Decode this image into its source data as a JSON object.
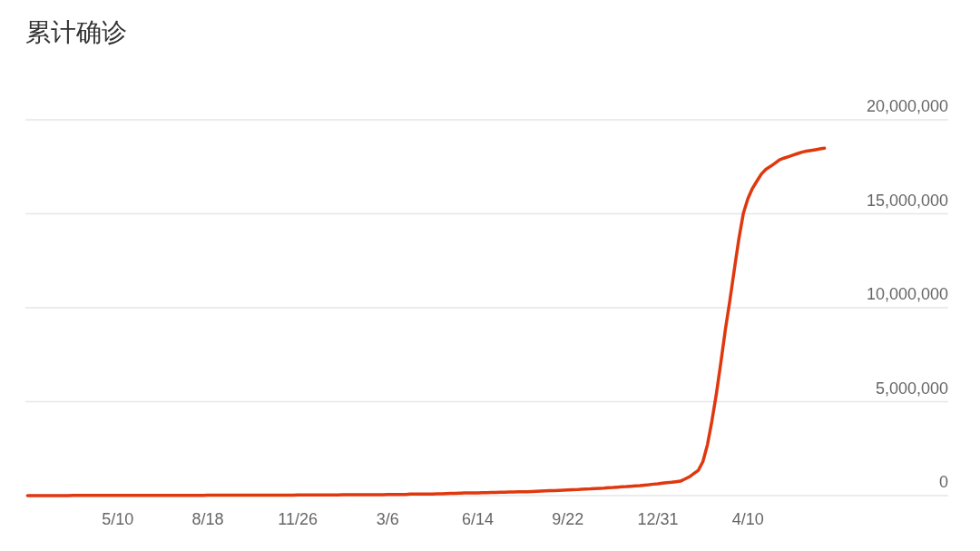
{
  "chart_data": {
    "type": "line",
    "title": "累计确诊",
    "categories": [
      null,
      null,
      null,
      null,
      null,
      null,
      null,
      null,
      null,
      null,
      null,
      null,
      null,
      null,
      null,
      null,
      null,
      null,
      null,
      null,
      "5/10",
      null,
      null,
      null,
      null,
      null,
      null,
      null,
      null,
      null,
      null,
      null,
      null,
      null,
      null,
      null,
      null,
      null,
      null,
      null,
      "8/18",
      null,
      null,
      null,
      null,
      null,
      null,
      null,
      null,
      null,
      null,
      null,
      null,
      null,
      null,
      null,
      null,
      null,
      null,
      null,
      "11/26",
      null,
      null,
      null,
      null,
      null,
      null,
      null,
      null,
      null,
      null,
      null,
      null,
      null,
      null,
      null,
      null,
      null,
      null,
      null,
      "3/6",
      null,
      null,
      null,
      null,
      null,
      null,
      null,
      null,
      null,
      null,
      null,
      null,
      null,
      null,
      null,
      null,
      null,
      null,
      null,
      "6/14",
      null,
      null,
      null,
      null,
      null,
      null,
      null,
      null,
      null,
      null,
      null,
      null,
      null,
      null,
      null,
      null,
      null,
      null,
      null,
      "9/22",
      null,
      null,
      null,
      null,
      null,
      null,
      null,
      null,
      null,
      null,
      null,
      null,
      null,
      null,
      null,
      null,
      null,
      null,
      null,
      "12/31",
      null,
      null,
      null,
      null,
      null,
      null,
      null,
      null,
      null,
      null,
      null,
      null,
      null,
      null,
      null,
      null,
      null,
      null,
      null,
      "4/10",
      null,
      null,
      null,
      null,
      null,
      null,
      null,
      null,
      null,
      null,
      null,
      null,
      null,
      null,
      null,
      null,
      null,
      null,
      null,
      null,
      null,
      null,
      null,
      null,
      null,
      null,
      null,
      null,
      null,
      null,
      null,
      null,
      null,
      null,
      null,
      null,
      null,
      null,
      null,
      null,
      null,
      null,
      null,
      null
    ],
    "series": [
      {
        "color": "#e0380e",
        "values": [
          0,
          0,
          0,
          0,
          0,
          0,
          0,
          0,
          0,
          0,
          10000,
          10000,
          10000,
          10000,
          10000,
          10000,
          10000,
          10000,
          10000,
          10000,
          10000,
          10000,
          10000,
          10000,
          10000,
          10000,
          10000,
          10000,
          10000,
          10000,
          10000,
          10000,
          10000,
          10000,
          10000,
          10000,
          10000,
          10000,
          10000,
          10000,
          20000,
          20000,
          20000,
          20000,
          20000,
          20000,
          20000,
          20000,
          20000,
          20000,
          20000,
          20000,
          20000,
          20000,
          20000,
          20000,
          20000,
          20000,
          20000,
          20000,
          40000,
          40000,
          40000,
          40000,
          40000,
          40000,
          40000,
          40000,
          40000,
          40000,
          50000,
          50000,
          50000,
          50000,
          50000,
          50000,
          50000,
          50000,
          50000,
          50000,
          60000,
          60000,
          60000,
          60000,
          60000,
          80000,
          80000,
          80000,
          80000,
          80000,
          90000,
          100000,
          100000,
          110000,
          120000,
          120000,
          130000,
          140000,
          140000,
          150000,
          150000,
          160000,
          160000,
          170000,
          170000,
          180000,
          180000,
          190000,
          190000,
          200000,
          200000,
          210000,
          220000,
          230000,
          240000,
          250000,
          260000,
          270000,
          280000,
          290000,
          300000,
          310000,
          320000,
          340000,
          350000,
          360000,
          380000,
          390000,
          400000,
          420000,
          430000,
          450000,
          470000,
          480000,
          500000,
          520000,
          530000,
          560000,
          580000,
          610000,
          630000,
          660000,
          690000,
          710000,
          740000,
          770000,
          880000,
          1000000,
          1180000,
          1350000,
          1810000,
          2700000,
          3970000,
          5430000,
          7100000,
          8850000,
          10400000,
          12060000,
          13680000,
          15040000,
          15810000,
          16350000,
          16740000,
          17120000,
          17370000,
          17520000,
          17690000,
          17870000,
          17960000,
          18040000,
          18120000,
          18200000,
          18280000,
          18330000,
          18370000,
          18410000,
          18450000,
          18490000,
          null,
          null,
          null,
          null,
          null,
          null,
          null,
          null,
          null,
          null,
          null,
          null,
          null,
          null,
          null,
          null,
          null,
          null,
          null,
          null,
          null,
          null,
          null,
          null,
          null,
          null,
          null
        ]
      }
    ],
    "ylim": [
      0,
      20000000
    ],
    "yticks": [
      {
        "value": 0,
        "label": "0"
      },
      {
        "value": 5000000,
        "label": "5,000,000"
      },
      {
        "value": 10000000,
        "label": "10,000,000"
      },
      {
        "value": 15000000,
        "label": "15,000,000"
      },
      {
        "value": 20000000,
        "label": "20,000,000"
      }
    ],
    "grid": "y"
  }
}
